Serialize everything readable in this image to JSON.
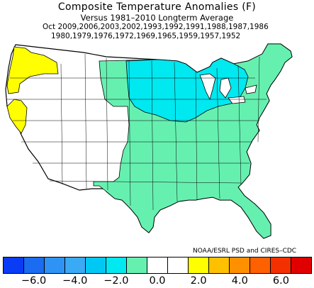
{
  "title": {
    "line1": "Composite Temperature Anomalies (F)",
    "line2": "Versus 1981–2010 Longterm Average",
    "line3": "Oct  2009,2006,2003,2002,1993,1992,1991,1988,1987,1986",
    "line4": "1980,1979,1976,1972,1969,1965,1959,1957,1952"
  },
  "credit": "NOAA/ESRL PSD and CIRES–CDC",
  "colors": {
    "cold3": "#1a6cf0",
    "cold2": "#3aaaf5",
    "cold1": "#00e8f0",
    "near_neutral_cool": "#66f0b0",
    "neutral": "#ffffff",
    "warm1": "#ffff00",
    "outline": "#000000"
  },
  "colorbar": {
    "colors": [
      "#0a3cf5",
      "#1a6cf0",
      "#2f93f5",
      "#3aaaf5",
      "#00c8f5",
      "#00e8f0",
      "#66f0b0",
      "#ffffff",
      "#ffffff",
      "#ffff00",
      "#ffc000",
      "#ff9000",
      "#ff6000",
      "#f53000",
      "#e00000"
    ],
    "ticks": [
      {
        "label": "−6.0",
        "value": -6.0
      },
      {
        "label": "−4.0",
        "value": -4.0
      },
      {
        "label": "−2.0",
        "value": -2.0
      },
      {
        "label": "0.0",
        "value": 0.0
      },
      {
        "label": "2.0",
        "value": 2.0
      },
      {
        "label": "4.0",
        "value": 4.0
      },
      {
        "label": "6.0",
        "value": 6.0
      }
    ]
  },
  "map_regions": [
    {
      "name": "east-central-us",
      "anomaly_class": "near_neutral_cool"
    },
    {
      "name": "upper-midwest",
      "anomaly_class": "cold1"
    },
    {
      "name": "pacific-northwest-coast",
      "anomaly_class": "warm1"
    },
    {
      "name": "northern-california-interior",
      "anomaly_class": "warm1"
    },
    {
      "name": "western-interior",
      "anomaly_class": "neutral"
    }
  ]
}
